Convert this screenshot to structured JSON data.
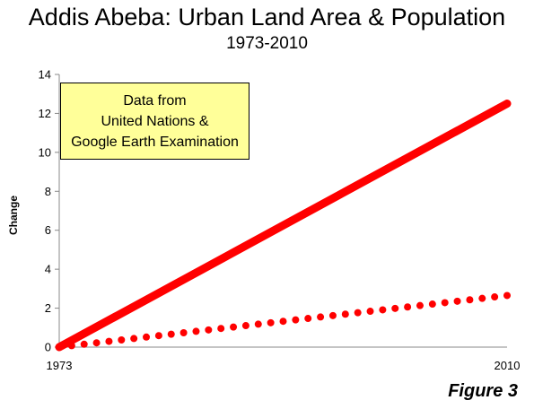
{
  "title": "Addis Abeba: Urban Land Area & Population",
  "subtitle": "1973-2010",
  "figure_label": "Figure 3",
  "note_lines": [
    "Data from",
    "United Nations &",
    "Google Earth Examination"
  ],
  "colors": {
    "series": "#ff0000",
    "note_bg": "#ffff99",
    "axis": "#888888"
  },
  "chart_data": {
    "type": "line",
    "title": "Addis Abeba: Urban Land Area & Population",
    "subtitle": "1973-2010",
    "xlabel": "",
    "ylabel": "Change",
    "x_ticks": [
      "1973",
      "2010"
    ],
    "xlim": [
      1973,
      2010
    ],
    "ylim": [
      0,
      14
    ],
    "y_ticks": [
      0,
      2,
      4,
      6,
      8,
      10,
      12,
      14
    ],
    "grid": false,
    "legend": "none",
    "series": [
      {
        "style": "solid",
        "x": [
          1973,
          2010
        ],
        "values": [
          0,
          12.5
        ]
      },
      {
        "style": "dotted",
        "x": [
          1973,
          2010
        ],
        "values": [
          0,
          2.65
        ]
      }
    ]
  }
}
